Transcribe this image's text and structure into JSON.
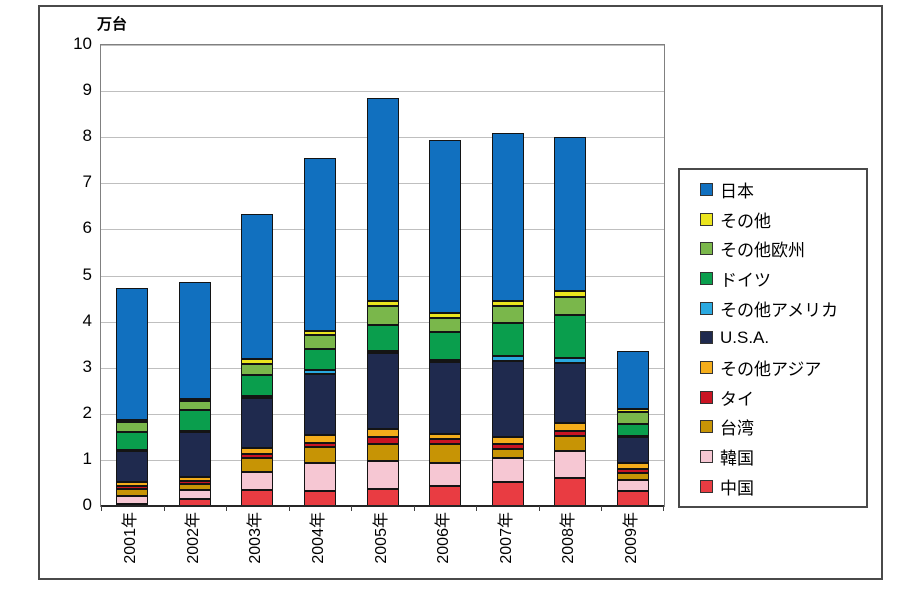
{
  "chart_data": {
    "type": "bar",
    "stacked": true,
    "unit_label": "万台",
    "categories": [
      "2001年",
      "2002年",
      "2003年",
      "2004年",
      "2005年",
      "2006年",
      "2007年",
      "2008年",
      "2009年"
    ],
    "series": [
      {
        "name": "中国",
        "color": "#E93C42",
        "values": [
          0.05,
          0.15,
          0.35,
          0.33,
          0.37,
          0.43,
          0.52,
          0.61,
          0.33
        ]
      },
      {
        "name": "韓国",
        "color": "#F6C7D3",
        "values": [
          0.17,
          0.2,
          0.39,
          0.6,
          0.61,
          0.5,
          0.52,
          0.58,
          0.24
        ]
      },
      {
        "name": "台湾",
        "color": "#C79405",
        "values": [
          0.15,
          0.13,
          0.3,
          0.35,
          0.37,
          0.42,
          0.2,
          0.33,
          0.15
        ]
      },
      {
        "name": "タイ",
        "color": "#C91423",
        "values": [
          0.06,
          0.06,
          0.09,
          0.09,
          0.15,
          0.1,
          0.11,
          0.11,
          0.08
        ]
      },
      {
        "name": "その他アジア",
        "color": "#F4AD1B",
        "values": [
          0.09,
          0.09,
          0.13,
          0.17,
          0.16,
          0.12,
          0.14,
          0.18,
          0.13
        ]
      },
      {
        "name": "U.S.A.",
        "color": "#1F2A4E",
        "values": [
          0.67,
          0.98,
          1.09,
          1.33,
          1.66,
          1.56,
          1.65,
          1.3,
          0.57
        ]
      },
      {
        "name": "その他アメリカ",
        "color": "#2AA9E0",
        "values": [
          0.02,
          0.02,
          0.03,
          0.08,
          0.04,
          0.04,
          0.11,
          0.11,
          0.02
        ]
      },
      {
        "name": "ドイツ",
        "color": "#0A9E4D",
        "values": [
          0.4,
          0.45,
          0.46,
          0.46,
          0.57,
          0.61,
          0.71,
          0.93,
          0.26
        ]
      },
      {
        "name": "その他欧州",
        "color": "#7AB74B",
        "values": [
          0.22,
          0.2,
          0.24,
          0.3,
          0.4,
          0.3,
          0.37,
          0.38,
          0.25
        ]
      },
      {
        "name": "その他",
        "color": "#EBE51E",
        "values": [
          0.04,
          0.05,
          0.1,
          0.08,
          0.12,
          0.1,
          0.12,
          0.13,
          0.07
        ]
      },
      {
        "name": "日本",
        "color": "#1170BF",
        "values": [
          2.87,
          2.54,
          3.15,
          3.76,
          4.4,
          3.76,
          3.65,
          3.34,
          1.27
        ]
      }
    ],
    "ylim": [
      0,
      10
    ],
    "ytick_labels": [
      "0",
      "1",
      "2",
      "3",
      "4",
      "5",
      "6",
      "7",
      "8",
      "9",
      "10"
    ],
    "grid": "horizontal",
    "legend_position": "right",
    "legend_order": "reverse-of-stack"
  }
}
